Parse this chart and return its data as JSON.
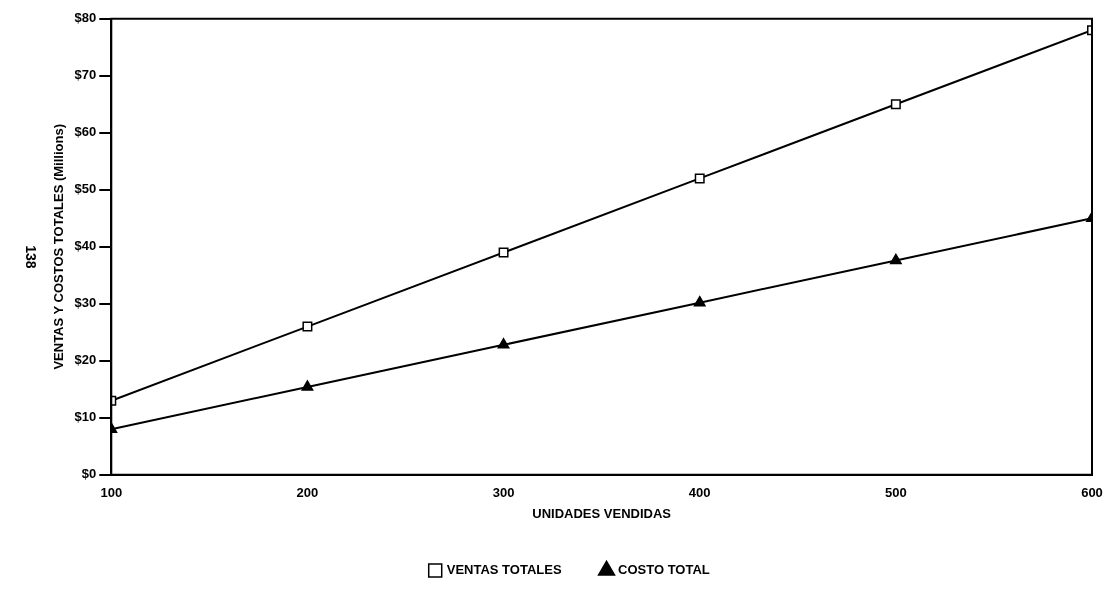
{
  "chart_data": {
    "type": "line",
    "xlabel": "UNIDADES VENDIDAS",
    "ylabel": "VENTAS Y COSTOS TOTALES (Millions)",
    "x": [
      100,
      200,
      300,
      400,
      500,
      600
    ],
    "series": [
      {
        "name": "VENTAS TOTALES",
        "color": "#000000",
        "marker": "square",
        "values": [
          13,
          26,
          39,
          52,
          65,
          78
        ]
      },
      {
        "name": "COSTO TOTAL",
        "color": "#000000",
        "marker": "triangle",
        "values": [
          8,
          15.4,
          22.8,
          30.2,
          37.6,
          45
        ]
      }
    ],
    "xlim": [
      100,
      600
    ],
    "xticks": [
      100,
      200,
      300,
      400,
      500,
      600
    ],
    "ylim": [
      0,
      80
    ],
    "yticks": [
      {
        "value": 0,
        "label": "$0"
      },
      {
        "value": 10,
        "label": "$10"
      },
      {
        "value": 20,
        "label": "$20"
      },
      {
        "value": 30,
        "label": "$30"
      },
      {
        "value": 40,
        "label": "$40"
      },
      {
        "value": 50,
        "label": "$50"
      },
      {
        "value": 60,
        "label": "$60"
      },
      {
        "value": 70,
        "label": "$70"
      },
      {
        "value": 80,
        "label": "$80"
      }
    ],
    "grid": false,
    "legend": "bottom",
    "line_style": "solid",
    "annotations": [
      "138"
    ]
  }
}
